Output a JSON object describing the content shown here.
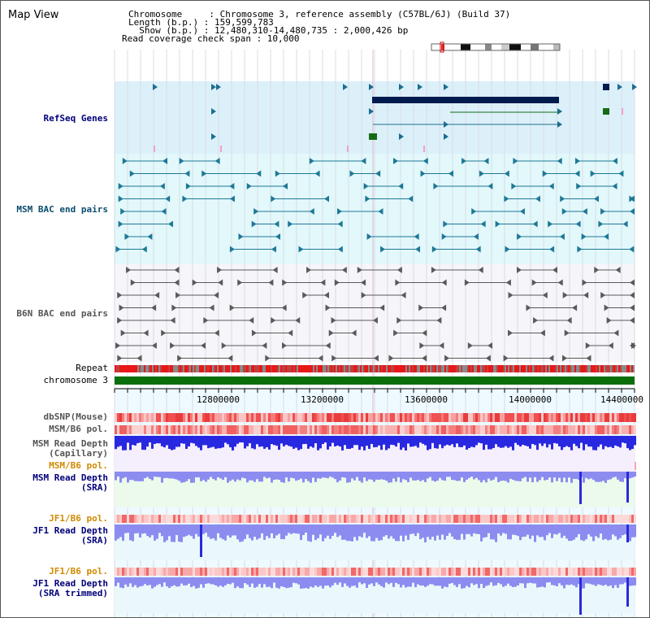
{
  "title": "Map View",
  "info": {
    "chromosome": "Chromosome     : Chromosome 3, reference assembly (C57BL/6J) (Build 37)",
    "length": "Length (b.p.) : 159,599,783",
    "show": "  Show (b.p.) : 12,480,310-14,480,735 : 2,000,426 bp",
    "coverage": "Read coverage check span : 10,000"
  },
  "tracks": {
    "refseq": "RefSeq Genes",
    "msm_bac": "MSM BAC end pairs",
    "b6n_bac": "B6N BAC end pairs",
    "repeat": "Repeat",
    "chromosome": "chromosome 3",
    "dbsnp": "dbSNP(Mouse)",
    "msm_b6_pol1": "MSM/B6 pol.",
    "msm_depth_cap": "MSM Read Depth\n(Capillary)",
    "msm_b6_pol2": "MSM/B6 pol.",
    "msm_depth_sra": "MSM Read Depth\n(SRA)",
    "jf1_b6_pol1": "JF1/B6 pol.",
    "jf1_depth_sra": "JF1 Read Depth\n(SRA)",
    "jf1_b6_pol2": "JF1/B6 pol.",
    "jf1_depth_trim": "JF1 Read Depth\n(SRA trimmed)"
  },
  "axis": {
    "t1": "12800000",
    "t2": "13200000",
    "t3": "13600000",
    "t4": "14000000",
    "t5": "14400000"
  },
  "colors": {
    "refseq_bg": "#dcf0fa",
    "bac_bg": "#e2f8fb",
    "b6n_bg": "#f5f5fa",
    "chrom_green": "#0a6e0a",
    "depth_blue": "#2a2adc",
    "depth_light": "#8c8cf0",
    "snp_red": "#e83c3c"
  }
}
